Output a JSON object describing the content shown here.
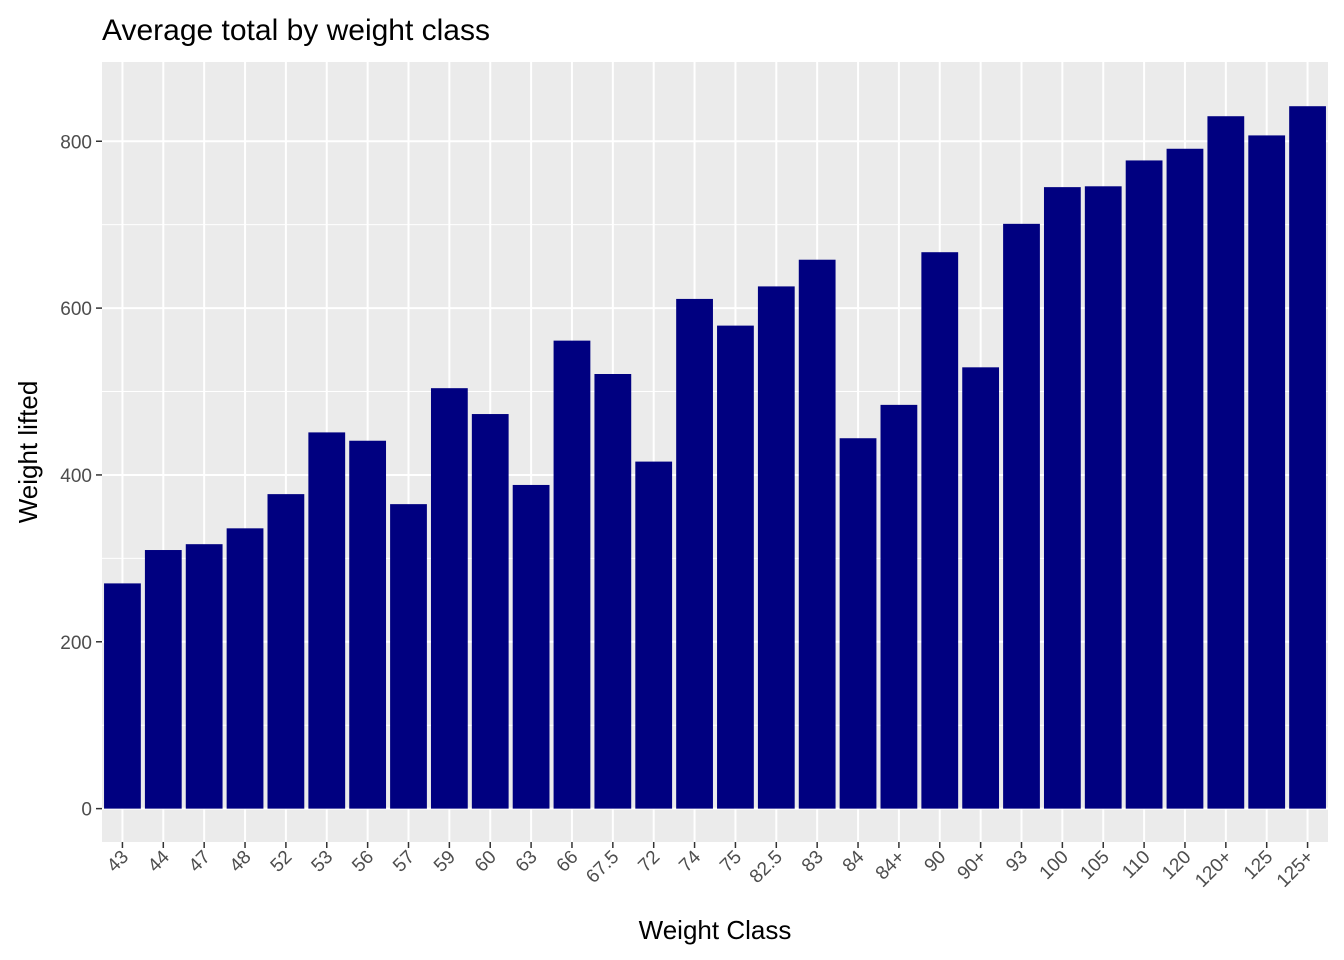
{
  "chart_data": {
    "type": "bar",
    "title": "Average total by weight class",
    "xlabel": "Weight Class",
    "ylabel": "Weight lifted",
    "categories": [
      "43",
      "44",
      "47",
      "48",
      "52",
      "53",
      "56",
      "57",
      "59",
      "60",
      "63",
      "66",
      "67.5",
      "72",
      "74",
      "75",
      "82.5",
      "83",
      "84",
      "84+",
      "90",
      "90+",
      "93",
      "100",
      "105",
      "110",
      "120",
      "120+",
      "125",
      "125+"
    ],
    "values": [
      270,
      310,
      317,
      336,
      377,
      451,
      441,
      365,
      504,
      473,
      388,
      561,
      521,
      416,
      611,
      579,
      626,
      658,
      444,
      484,
      667,
      529,
      701,
      745,
      746,
      777,
      791,
      830,
      807,
      842
    ],
    "ylim": [
      -40,
      895
    ],
    "yticks": [
      0,
      200,
      400,
      600,
      800
    ],
    "grid": true,
    "bar_color": "#000080",
    "panel_color": "#ebebeb",
    "grid_color": "#ffffff"
  }
}
